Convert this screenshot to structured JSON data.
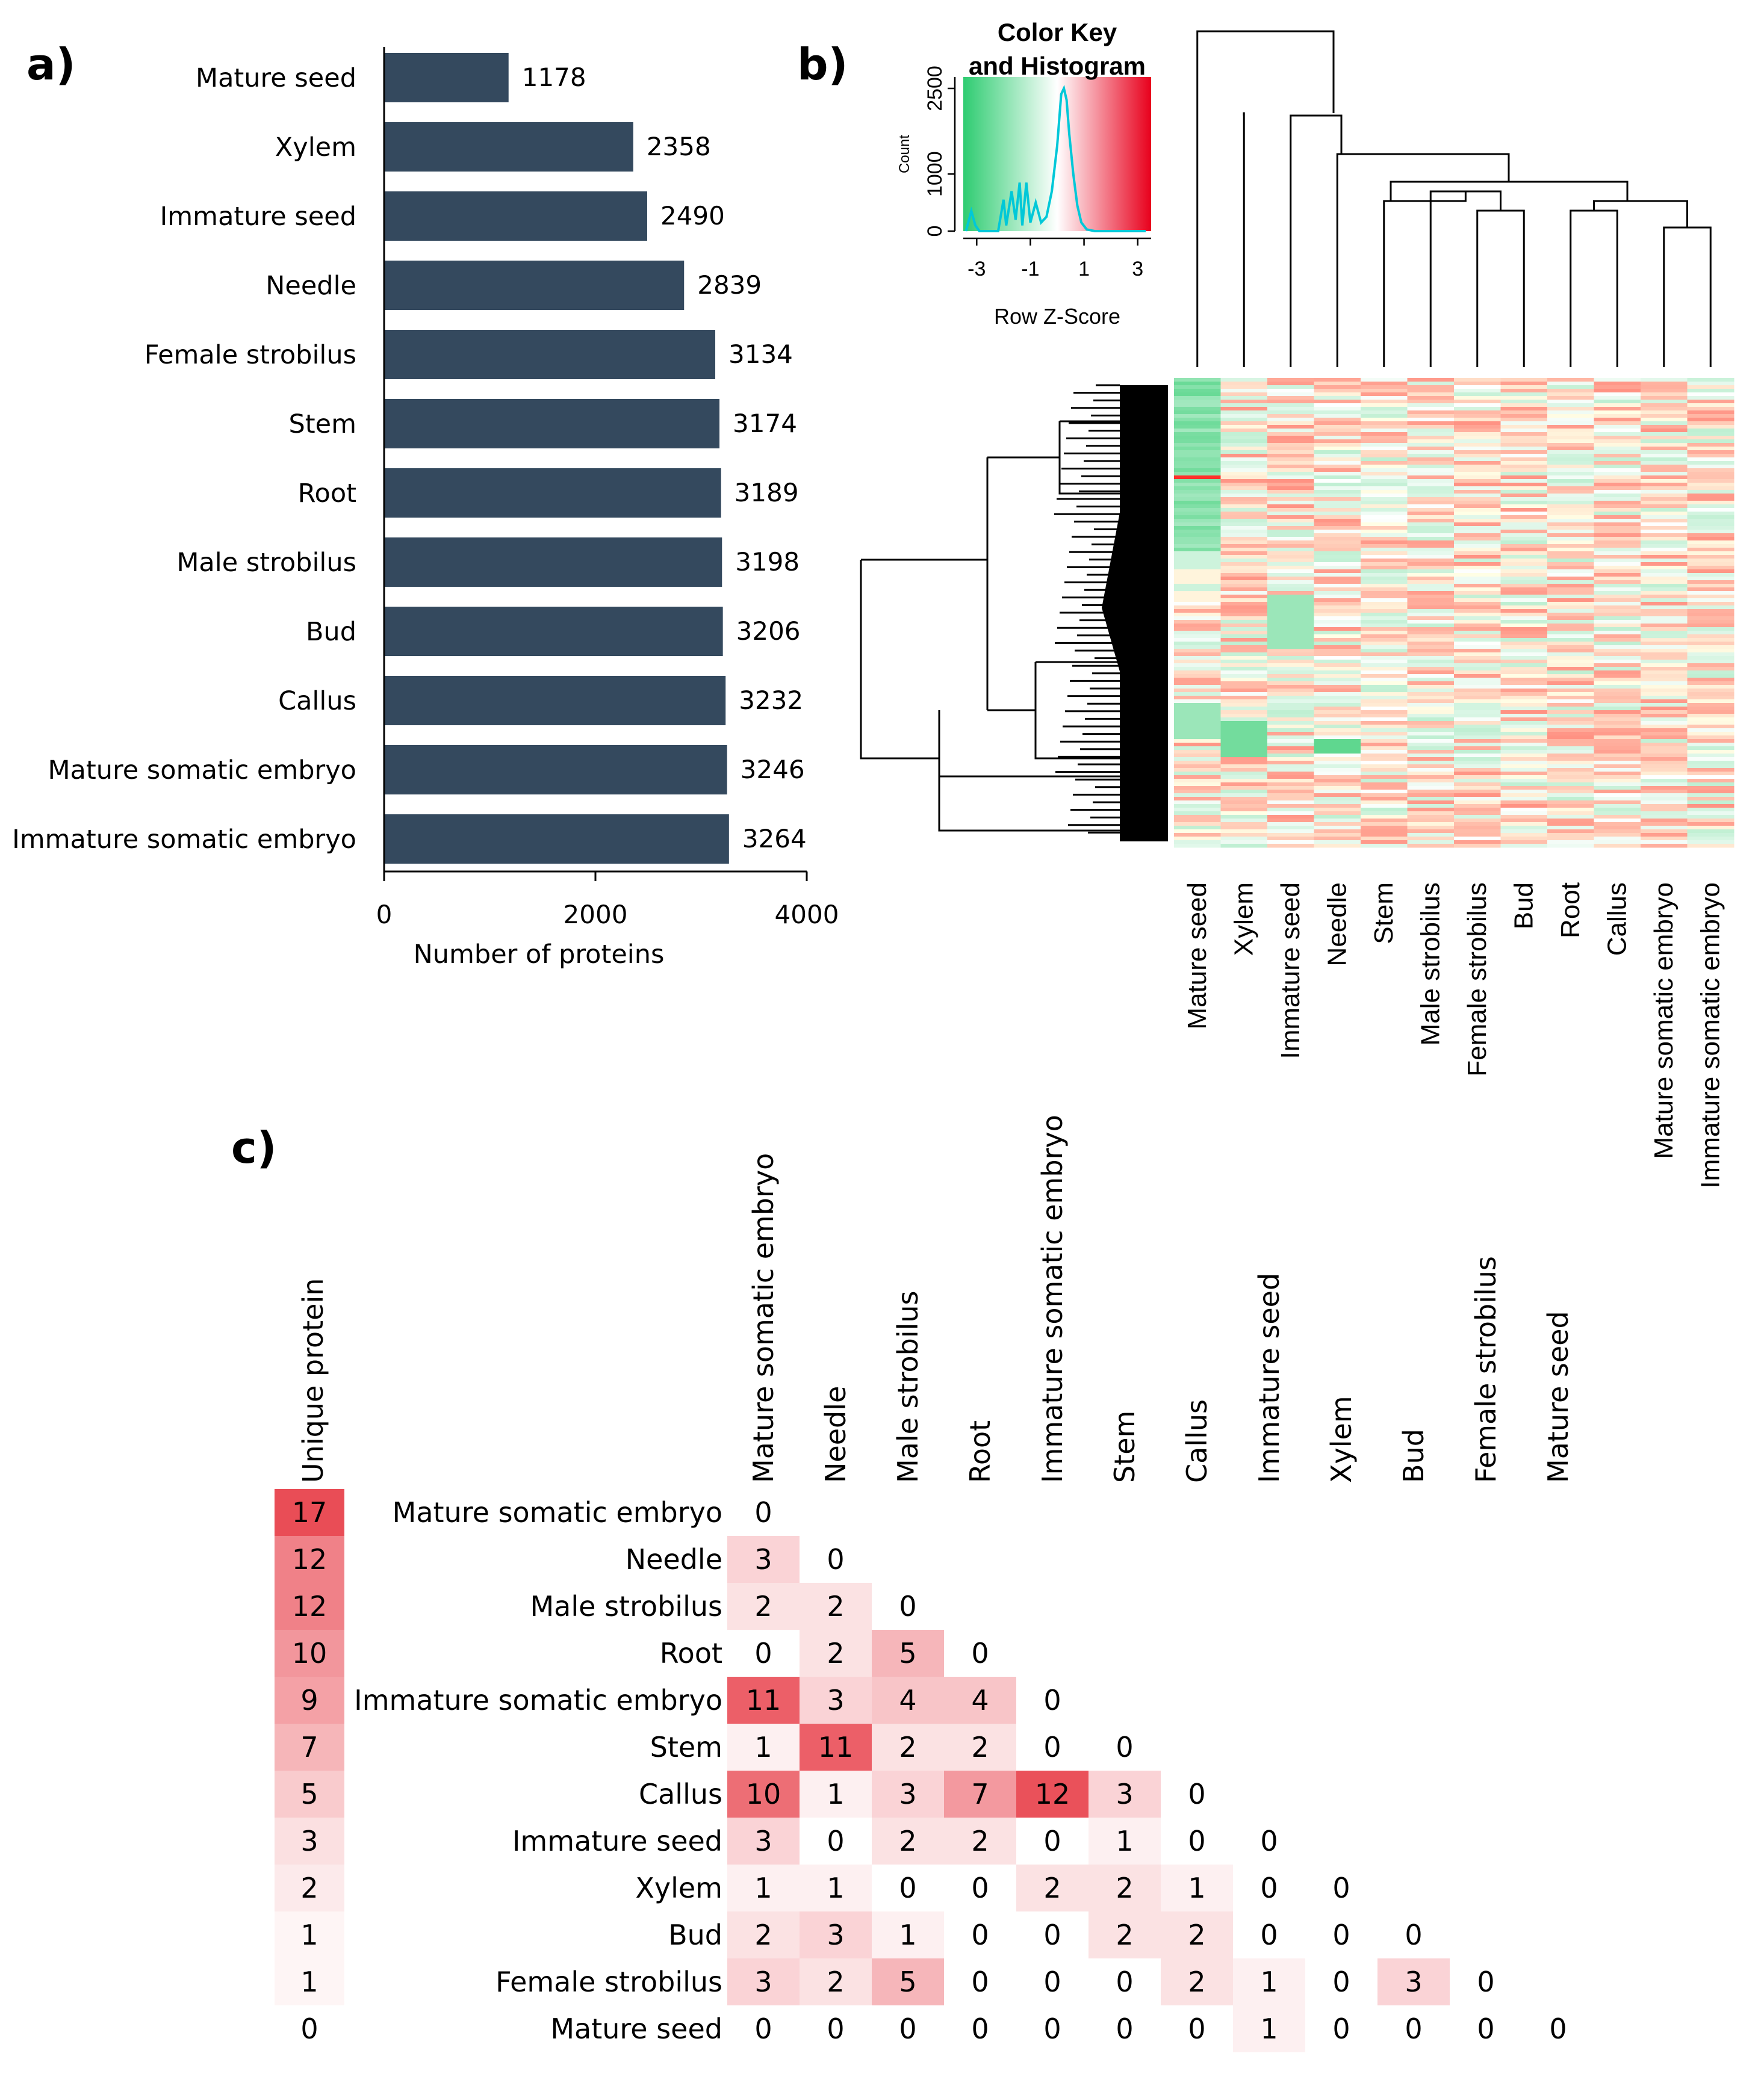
{
  "chart_data": [
    {
      "type": "bar",
      "panel_label": "a)",
      "orientation": "horizontal",
      "categories": [
        "Mature seed",
        "Xylem",
        "Immature seed",
        "Needle",
        "Female strobilus",
        "Stem",
        "Root",
        "Male strobilus",
        "Bud",
        "Callus",
        "Mature somatic embryo",
        "Immature somatic embryo"
      ],
      "values": [
        1178,
        2358,
        2490,
        2839,
        3134,
        3174,
        3189,
        3198,
        3206,
        3232,
        3246,
        3264
      ],
      "value_labels": [
        "1178",
        "2358",
        "2490",
        "2839",
        "3134",
        "3174",
        "3189",
        "3198",
        "3206",
        "3232",
        "3246",
        "3264"
      ],
      "xlabel": "Number of proteins",
      "xlim": [
        0,
        4000
      ],
      "xticks": [
        0,
        2000,
        4000
      ],
      "bar_color": "#34495e"
    },
    {
      "type": "heatmap",
      "panel_label": "b)",
      "color_key_title": "Color Key\nand Histogram",
      "color_key_title_lines": [
        "Color Key",
        "and Histogram"
      ],
      "color_key_xlabel": "Row Z-Score",
      "color_key_ylabel": "Count",
      "color_key_xticks": [
        "-3",
        "-1",
        "1",
        "3"
      ],
      "color_key_yticks": [
        "0",
        "1000",
        "2500"
      ],
      "color_key_xrange": [
        -3.5,
        3.5
      ],
      "color_key_yrange": [
        0,
        2700
      ],
      "histogram": [
        [
          -3.4,
          0
        ],
        [
          -3.2,
          350
        ],
        [
          -3.05,
          100
        ],
        [
          -2.9,
          0
        ],
        [
          -2.2,
          0
        ],
        [
          -2.0,
          550
        ],
        [
          -1.9,
          100
        ],
        [
          -1.7,
          700
        ],
        [
          -1.55,
          200
        ],
        [
          -1.4,
          850
        ],
        [
          -1.3,
          100
        ],
        [
          -1.15,
          850
        ],
        [
          -1.0,
          150
        ],
        [
          -0.8,
          500
        ],
        [
          -0.6,
          150
        ],
        [
          -0.4,
          250
        ],
        [
          -0.2,
          700
        ],
        [
          0.0,
          1500
        ],
        [
          0.15,
          2400
        ],
        [
          0.25,
          2500
        ],
        [
          0.35,
          2300
        ],
        [
          0.45,
          1700
        ],
        [
          0.6,
          1000
        ],
        [
          0.75,
          450
        ],
        [
          0.9,
          150
        ],
        [
          1.1,
          30
        ],
        [
          1.4,
          0
        ],
        [
          3.3,
          0
        ]
      ],
      "columns": [
        "Mature seed",
        "Xylem",
        "Immature seed",
        "Needle",
        "Stem",
        "Male strobilus",
        "Female strobilus",
        "Bud",
        "Root",
        "Callus",
        "Mature somatic embryo",
        "Immature somatic embryo"
      ],
      "colors": {
        "low": "#2ecc71",
        "mid": "#ffffff",
        "high": "#e8001c",
        "histogram_line": "#00c8d8"
      }
    },
    {
      "type": "table",
      "panel_label": "c)",
      "unique_header": "Unique protein",
      "row_labels": [
        "Mature somatic embryo",
        "Needle",
        "Male strobilus",
        "Root",
        "Immature somatic embryo",
        "Stem",
        "Callus",
        "Immature seed",
        "Xylem",
        "Bud",
        "Female strobilus",
        "Mature seed"
      ],
      "col_labels": [
        "Mature somatic embryo",
        "Needle",
        "Male strobilus",
        "Root",
        "Immature somatic embryo",
        "Stem",
        "Callus",
        "Immature seed",
        "Xylem",
        "Bud",
        "Female strobilus",
        "Mature seed"
      ],
      "unique_values": [
        17,
        12,
        12,
        10,
        9,
        7,
        5,
        3,
        2,
        1,
        1,
        0
      ],
      "matrix": [
        [
          0
        ],
        [
          3,
          0
        ],
        [
          2,
          2,
          0
        ],
        [
          0,
          2,
          5,
          0
        ],
        [
          11,
          3,
          4,
          4,
          0
        ],
        [
          1,
          11,
          2,
          2,
          0,
          0
        ],
        [
          10,
          1,
          3,
          7,
          12,
          3,
          0
        ],
        [
          3,
          0,
          2,
          2,
          0,
          1,
          0,
          0
        ],
        [
          1,
          1,
          0,
          0,
          2,
          2,
          1,
          0,
          0
        ],
        [
          2,
          3,
          1,
          0,
          0,
          2,
          2,
          0,
          0,
          0
        ],
        [
          3,
          2,
          5,
          0,
          0,
          0,
          2,
          1,
          0,
          3,
          0
        ],
        [
          0,
          0,
          0,
          0,
          0,
          0,
          0,
          1,
          0,
          0,
          0,
          0
        ]
      ],
      "cell_color": "#e8424c"
    }
  ]
}
